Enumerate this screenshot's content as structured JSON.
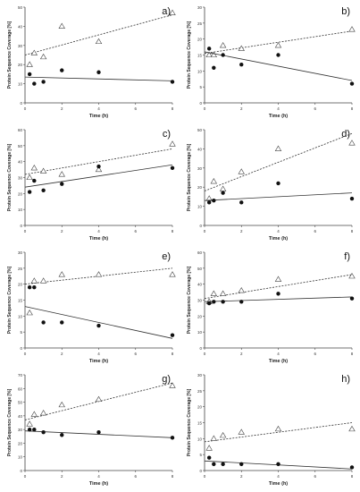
{
  "chart_data": [
    {
      "type": "scatter",
      "panel_label": "a)",
      "xlabel": "Time (h)",
      "ylabel": "Protein Sequence Coverage [%]",
      "xlim": [
        0,
        8
      ],
      "ylim": [
        0,
        50
      ],
      "xticks": [
        "0",
        "2",
        "4",
        "6",
        "8"
      ],
      "yticks": [
        "0",
        "10",
        "20",
        "30",
        "40",
        "50"
      ],
      "grid": false,
      "series": [
        {
          "marker": "open-triangle",
          "x": [
            0.25,
            0.5,
            1,
            2,
            4,
            8
          ],
          "y": [
            20,
            26,
            24,
            40,
            32,
            47
          ],
          "trend": [
            25,
            46
          ]
        },
        {
          "marker": "filled-circle",
          "x": [
            0.25,
            0.5,
            1,
            2,
            4,
            8
          ],
          "y": [
            15,
            10,
            11,
            17,
            16,
            11
          ],
          "trend": [
            13.5,
            11.5
          ]
        }
      ]
    },
    {
      "type": "scatter",
      "panel_label": "b)",
      "xlabel": "Time (h)",
      "ylabel": "Protein Sequence Coverage [%]",
      "xlim": [
        0,
        8
      ],
      "ylim": [
        0,
        30
      ],
      "xticks": [
        "0",
        "2",
        "4",
        "6",
        "8"
      ],
      "yticks": [
        "0",
        "5",
        "10",
        "15",
        "20",
        "25",
        "30"
      ],
      "grid": false,
      "series": [
        {
          "marker": "open-triangle",
          "x": [
            0.25,
            0.5,
            1,
            2,
            4,
            8
          ],
          "y": [
            15,
            15,
            18,
            17,
            18,
            23
          ],
          "trend": [
            15.5,
            22.5
          ]
        },
        {
          "marker": "filled-circle",
          "x": [
            0.25,
            0.5,
            1,
            2,
            4,
            8
          ],
          "y": [
            17,
            11,
            15,
            12,
            15,
            6
          ],
          "trend": [
            16,
            7
          ]
        }
      ]
    },
    {
      "type": "scatter",
      "panel_label": "c)",
      "xlabel": "Time (h)",
      "ylabel": "Protein Sequence Coverage [%]",
      "xlim": [
        0,
        8
      ],
      "ylim": [
        0,
        60
      ],
      "xticks": [
        "0",
        "2",
        "4",
        "6",
        "8"
      ],
      "yticks": [
        "0",
        "10",
        "20",
        "30",
        "40",
        "50",
        "60"
      ],
      "grid": false,
      "series": [
        {
          "marker": "open-triangle",
          "x": [
            0.25,
            0.5,
            1,
            2,
            4,
            8
          ],
          "y": [
            30,
            36,
            34,
            32,
            35,
            51
          ],
          "trend": [
            32,
            48
          ]
        },
        {
          "marker": "filled-circle",
          "x": [
            0.25,
            0.5,
            1,
            2,
            4,
            8
          ],
          "y": [
            21,
            28,
            22,
            26,
            37,
            36
          ],
          "trend": [
            24,
            38
          ]
        }
      ]
    },
    {
      "type": "scatter",
      "panel_label": "d)",
      "xlabel": "Time (h)",
      "ylabel": "Protein Sequence Coverage [%]",
      "xlim": [
        0,
        8
      ],
      "ylim": [
        0,
        50
      ],
      "xticks": [
        "0",
        "2",
        "4",
        "6",
        "8"
      ],
      "yticks": [
        "0",
        "10",
        "20",
        "30",
        "40",
        "50"
      ],
      "grid": false,
      "series": [
        {
          "marker": "open-triangle",
          "x": [
            0.25,
            0.5,
            1,
            2,
            4,
            8
          ],
          "y": [
            14,
            23,
            19,
            28,
            40,
            43
          ],
          "trend": [
            18,
            48
          ]
        },
        {
          "marker": "filled-circle",
          "x": [
            0.25,
            0.5,
            1,
            2,
            4,
            8
          ],
          "y": [
            12,
            13,
            17,
            12,
            22,
            14
          ],
          "trend": [
            13,
            17
          ]
        }
      ]
    },
    {
      "type": "scatter",
      "panel_label": "e)",
      "xlabel": "Time (h)",
      "ylabel": "Protein Sequence Coverage [%]",
      "xlim": [
        0,
        8
      ],
      "ylim": [
        0,
        30
      ],
      "xticks": [
        "0",
        "2",
        "4",
        "6",
        "8"
      ],
      "yticks": [
        "0",
        "5",
        "10",
        "15",
        "20",
        "25",
        "30"
      ],
      "grid": false,
      "series": [
        {
          "marker": "open-triangle",
          "x": [
            0.25,
            0.5,
            1,
            2,
            4,
            8
          ],
          "y": [
            11,
            21,
            21,
            23,
            23,
            23
          ],
          "trend": [
            20,
            25
          ]
        },
        {
          "marker": "filled-circle",
          "x": [
            0.25,
            0.5,
            1,
            2,
            4,
            8
          ],
          "y": [
            19,
            19,
            8,
            8,
            7,
            4
          ],
          "trend": [
            13,
            3
          ]
        }
      ]
    },
    {
      "type": "scatter",
      "panel_label": "f)",
      "xlabel": "Time (h)",
      "ylabel": "Protein Sequence Coverage [%]",
      "xlim": [
        0,
        8
      ],
      "ylim": [
        0,
        60
      ],
      "xticks": [
        "0",
        "2",
        "4",
        "6",
        "8"
      ],
      "yticks": [
        "0",
        "10",
        "20",
        "30",
        "40",
        "50",
        "60"
      ],
      "grid": false,
      "series": [
        {
          "marker": "open-triangle",
          "x": [
            0.25,
            0.5,
            1,
            2,
            4,
            8
          ],
          "y": [
            29,
            34,
            34,
            36,
            43,
            45
          ],
          "trend": [
            31,
            46
          ]
        },
        {
          "marker": "filled-circle",
          "x": [
            0.25,
            0.5,
            1,
            2,
            4,
            8
          ],
          "y": [
            28,
            29,
            29,
            29,
            34,
            31
          ],
          "trend": [
            29,
            32
          ]
        }
      ]
    },
    {
      "type": "scatter",
      "panel_label": "g)",
      "xlabel": "Time (h)",
      "ylabel": "Protein Sequence Coverage [%]",
      "xlim": [
        0,
        8
      ],
      "ylim": [
        0,
        70
      ],
      "xticks": [
        "0",
        "2",
        "4",
        "6",
        "8"
      ],
      "yticks": [
        "0",
        "10",
        "20",
        "30",
        "40",
        "50",
        "60",
        "70"
      ],
      "grid": false,
      "series": [
        {
          "marker": "open-triangle",
          "x": [
            0.25,
            0.5,
            1,
            2,
            4,
            8
          ],
          "y": [
            34,
            41,
            42,
            48,
            52,
            62
          ],
          "trend": [
            37,
            64
          ]
        },
        {
          "marker": "filled-circle",
          "x": [
            0.25,
            0.5,
            1,
            2,
            4,
            8
          ],
          "y": [
            30,
            30,
            28,
            26,
            28,
            24
          ],
          "trend": [
            29,
            24
          ]
        }
      ]
    },
    {
      "type": "scatter",
      "panel_label": "h)",
      "xlabel": "Time (h)",
      "ylabel": "Protein Sequence Coverage [%]",
      "xlim": [
        0,
        8
      ],
      "ylim": [
        0,
        30
      ],
      "xticks": [
        "0",
        "2",
        "4",
        "6",
        "8"
      ],
      "yticks": [
        "0",
        "5",
        "10",
        "15",
        "20",
        "25",
        "30"
      ],
      "grid": false,
      "series": [
        {
          "marker": "open-triangle",
          "x": [
            0.25,
            0.5,
            1,
            2,
            4,
            8
          ],
          "y": [
            7,
            10,
            11,
            12,
            13,
            13
          ],
          "trend": [
            9,
            15
          ]
        },
        {
          "marker": "filled-circle",
          "x": [
            0.25,
            0.5,
            1,
            2,
            4,
            8
          ],
          "y": [
            4,
            2,
            2,
            2,
            2,
            1
          ],
          "trend": [
            3,
            0.5
          ]
        }
      ]
    }
  ]
}
